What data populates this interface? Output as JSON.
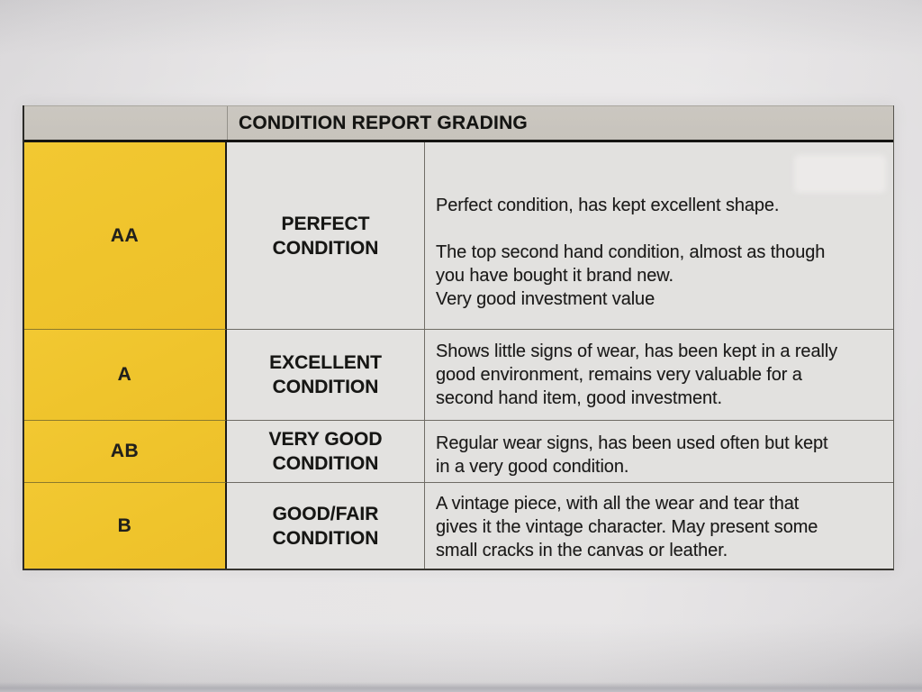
{
  "document": {
    "type": "photographed printed condition grading table",
    "title": "CONDITION REPORT GRADING"
  },
  "colors": {
    "paper": "#e3e1e2",
    "header_bar": "#c7c3bc",
    "grade_column_yellow": "#efc42c",
    "cell_background": "#e2e1df",
    "text": "#1b1a19",
    "table_border": "#2b2a27"
  },
  "table": {
    "title": "CONDITION REPORT GRADING",
    "rows": [
      {
        "grade": "AA",
        "condition_lines": [
          "PERFECT",
          "CONDITION"
        ],
        "paragraphs": [
          [
            "Perfect condition, has kept excellent shape."
          ],
          [
            "The top second hand condition, almost as though",
            "you have bought it brand new."
          ],
          [
            "Very good investment value"
          ]
        ]
      },
      {
        "grade": "A",
        "condition_lines": [
          "EXCELLENT",
          "CONDITION"
        ],
        "paragraphs": [
          [
            "Shows little signs of wear, has been kept in a really",
            "good environment, remains very valuable for a",
            "second hand item, good investment."
          ]
        ]
      },
      {
        "grade": "AB",
        "condition_lines": [
          "VERY GOOD",
          "CONDITION"
        ],
        "paragraphs": [
          [
            "Regular wear signs, has been used often but kept",
            "in a very good condition."
          ]
        ]
      },
      {
        "grade": "B",
        "condition_lines": [
          "GOOD/FAIR",
          "CONDITION"
        ],
        "paragraphs": [
          [
            "A vintage piece, with all the wear and tear that",
            "gives it the vintage character. May present some",
            "small cracks in the canvas or leather."
          ]
        ]
      }
    ]
  }
}
